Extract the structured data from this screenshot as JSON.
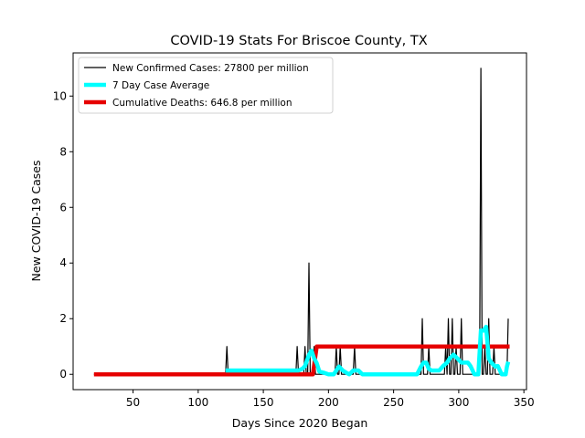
{
  "chart_data": {
    "type": "line",
    "title": "COVID-19 Stats For Briscoe County, TX",
    "xlabel": "Days Since 2020 Began",
    "ylabel": "New COVID-19 Cases",
    "xlim": [
      4,
      352
    ],
    "ylim": [
      -0.55,
      11.55
    ],
    "xticks": [
      50,
      100,
      150,
      200,
      250,
      300,
      350
    ],
    "yticks": [
      0,
      2,
      4,
      6,
      8,
      10
    ],
    "legend_position": "top-left",
    "legend": [
      "New Confirmed Cases: 27800 per million",
      "7 Day Case Average",
      "Cumulative Deaths: 646.8 per million"
    ],
    "series": [
      {
        "name": "New Confirmed Cases: 27800 per million",
        "color": "#000000",
        "points": [
          [
            20,
            0
          ],
          [
            121,
            0
          ],
          [
            122,
            1
          ],
          [
            123,
            0
          ],
          [
            175,
            0
          ],
          [
            176,
            1
          ],
          [
            177,
            0
          ],
          [
            181,
            0
          ],
          [
            182,
            1
          ],
          [
            183,
            0
          ],
          [
            184,
            0
          ],
          [
            185,
            4
          ],
          [
            186,
            0
          ],
          [
            188,
            0
          ],
          [
            189,
            1
          ],
          [
            190,
            0
          ],
          [
            205,
            0
          ],
          [
            206,
            1
          ],
          [
            207,
            0
          ],
          [
            208,
            0
          ],
          [
            209,
            1
          ],
          [
            210,
            0
          ],
          [
            219,
            0
          ],
          [
            220,
            1
          ],
          [
            221,
            0
          ],
          [
            271,
            0
          ],
          [
            272,
            2
          ],
          [
            273,
            0
          ],
          [
            276,
            0
          ],
          [
            277,
            1
          ],
          [
            278,
            0
          ],
          [
            289,
            0
          ],
          [
            290,
            1
          ],
          [
            291,
            0
          ],
          [
            292,
            2
          ],
          [
            293,
            0
          ],
          [
            294,
            0
          ],
          [
            295,
            2
          ],
          [
            296,
            0
          ],
          [
            297,
            0
          ],
          [
            298,
            1
          ],
          [
            299,
            0
          ],
          [
            301,
            0
          ],
          [
            302,
            2
          ],
          [
            303,
            0
          ],
          [
            316,
            0
          ],
          [
            317,
            11
          ],
          [
            318,
            0
          ],
          [
            319,
            0
          ],
          [
            320,
            1
          ],
          [
            321,
            0
          ],
          [
            322,
            0
          ],
          [
            323,
            2
          ],
          [
            324,
            0
          ],
          [
            326,
            0
          ],
          [
            327,
            1
          ],
          [
            328,
            0
          ],
          [
            337,
            0
          ],
          [
            338,
            2
          ]
        ]
      },
      {
        "name": "7 Day Case Average",
        "color": "#00ffff",
        "points": [
          [
            121,
            0.14
          ],
          [
            124,
            0.14
          ],
          [
            126,
            0.14
          ],
          [
            128,
            0.14
          ],
          [
            177,
            0.14
          ],
          [
            180,
            0.2
          ],
          [
            182,
            0.3
          ],
          [
            185,
            0.7
          ],
          [
            187,
            0.85
          ],
          [
            189,
            0.57
          ],
          [
            191,
            0.4
          ],
          [
            193,
            0.1
          ],
          [
            197,
            0.05
          ],
          [
            200,
            0
          ],
          [
            204,
            0
          ],
          [
            206,
            0.14
          ],
          [
            208,
            0.28
          ],
          [
            211,
            0.14
          ],
          [
            214,
            0.05
          ],
          [
            216,
            0
          ],
          [
            219,
            0.14
          ],
          [
            223,
            0.14
          ],
          [
            226,
            0
          ],
          [
            268,
            0
          ],
          [
            271,
            0.28
          ],
          [
            273,
            0.42
          ],
          [
            275,
            0.42
          ],
          [
            277,
            0.2
          ],
          [
            279,
            0.14
          ],
          [
            282,
            0.14
          ],
          [
            285,
            0.14
          ],
          [
            288,
            0.3
          ],
          [
            291,
            0.42
          ],
          [
            293,
            0.57
          ],
          [
            296,
            0.71
          ],
          [
            299,
            0.57
          ],
          [
            302,
            0.42
          ],
          [
            305,
            0.42
          ],
          [
            307,
            0.42
          ],
          [
            309,
            0.3
          ],
          [
            312,
            0
          ],
          [
            315,
            0
          ],
          [
            317,
            1.57
          ],
          [
            319,
            1.57
          ],
          [
            321,
            1.71
          ],
          [
            323,
            0.57
          ],
          [
            325,
            0.42
          ],
          [
            328,
            0.28
          ],
          [
            330,
            0.3
          ],
          [
            333,
            0
          ],
          [
            336,
            0
          ],
          [
            337,
            0.28
          ],
          [
            338,
            0.45
          ]
        ]
      },
      {
        "name": "Cumulative Deaths: 646.8 per million",
        "color": "#e60000",
        "points": [
          [
            20,
            0
          ],
          [
            188,
            0
          ],
          [
            191,
            1
          ],
          [
            339,
            1
          ]
        ]
      }
    ]
  }
}
